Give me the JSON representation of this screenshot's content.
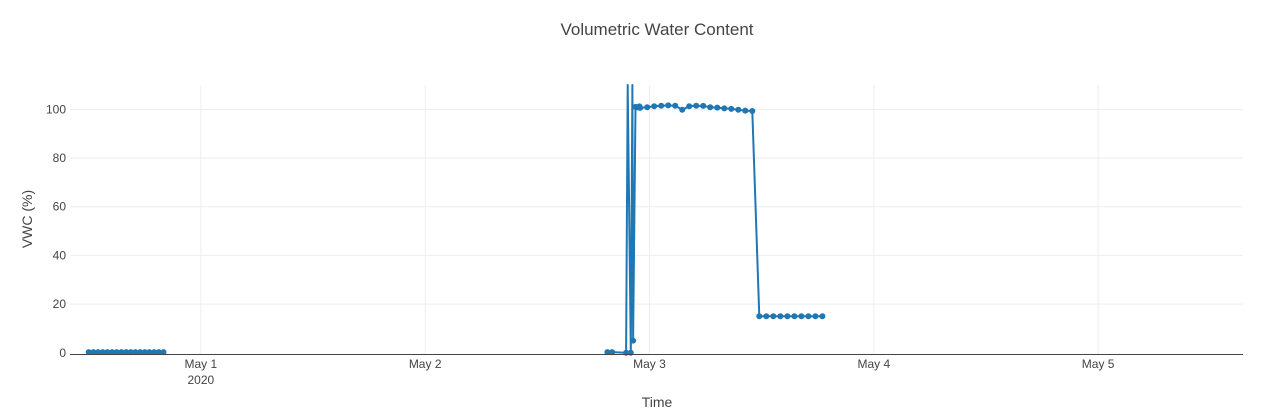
{
  "chart_data": {
    "type": "line",
    "title": "Volumetric Water Content",
    "xlabel": "Time",
    "ylabel": "VWC (%)",
    "ylim": [
      -0.5,
      110
    ],
    "xlim": [
      "2020-04-30 10:00",
      "2020-05-05 15:30"
    ],
    "xticks": [
      {
        "value": "2020-05-01 00:00",
        "label": "May 1",
        "sublabel": "2020"
      },
      {
        "value": "2020-05-02 00:00",
        "label": "May 2"
      },
      {
        "value": "2020-05-03 00:00",
        "label": "May 3"
      },
      {
        "value": "2020-05-04 00:00",
        "label": "May 4"
      },
      {
        "value": "2020-05-05 00:00",
        "label": "May 5"
      }
    ],
    "yticks": [
      0,
      20,
      40,
      60,
      80,
      100
    ],
    "grid": true,
    "legend": "none",
    "colors": {
      "series": "#1f77b4",
      "grid": "#eeeeee",
      "axis": "#444444",
      "background": "#ffffff"
    },
    "series": [
      {
        "segments": [
          {
            "x": [
              "2020-04-30 12:00",
              "2020-04-30 12:30",
              "2020-04-30 13:00",
              "2020-04-30 13:30",
              "2020-04-30 14:00",
              "2020-04-30 14:30",
              "2020-04-30 15:00",
              "2020-04-30 15:30",
              "2020-04-30 16:00",
              "2020-04-30 16:30",
              "2020-04-30 17:00",
              "2020-04-30 17:30",
              "2020-04-30 18:00",
              "2020-04-30 18:30",
              "2020-04-30 19:00",
              "2020-04-30 19:30",
              "2020-04-30 20:00"
            ],
            "y": [
              0.3,
              0.3,
              0.3,
              0.3,
              0.3,
              0.3,
              0.3,
              0.3,
              0.3,
              0.3,
              0.3,
              0.3,
              0.3,
              0.3,
              0.3,
              0.3,
              0.3
            ]
          },
          {
            "x": [
              "2020-05-02 19:30",
              "2020-05-02 20:00",
              "2020-05-02 21:30",
              "2020-05-02 21:40",
              "2020-05-02 22:00",
              "2020-05-02 22:10",
              "2020-05-02 22:15",
              "2020-05-02 22:30",
              "2020-05-02 22:45",
              "2020-05-02 22:55"
            ],
            "y": [
              0.3,
              0.3,
              0,
              115,
              0,
              112,
              5,
              101,
              100.8,
              101.2
            ]
          },
          {
            "x": [
              "2020-05-02 23:00",
              "2020-05-02 23:45",
              "2020-05-03 00:30",
              "2020-05-03 01:15",
              "2020-05-03 02:00",
              "2020-05-03 02:45",
              "2020-05-03 03:30",
              "2020-05-03 04:15",
              "2020-05-03 05:00",
              "2020-05-03 05:45",
              "2020-05-03 06:30",
              "2020-05-03 07:15",
              "2020-05-03 08:00",
              "2020-05-03 08:45",
              "2020-05-03 09:30",
              "2020-05-03 10:15",
              "2020-05-03 11:00",
              "2020-05-03 11:45",
              "2020-05-03 12:30",
              "2020-05-03 13:15",
              "2020-05-03 14:00",
              "2020-05-03 14:45",
              "2020-05-03 15:30",
              "2020-05-03 16:15",
              "2020-05-03 17:00",
              "2020-05-03 17:45",
              "2020-05-03 18:30"
            ],
            "y": [
              100.6,
              100.9,
              101.3,
              101.5,
              101.6,
              101.5,
              99.8,
              101.3,
              101.5,
              101.4,
              100.9,
              100.7,
              100.4,
              100.2,
              99.8,
              99.5,
              99.3,
              15,
              15,
              15,
              15,
              15,
              15,
              15,
              15,
              15,
              15
            ]
          }
        ]
      }
    ]
  }
}
